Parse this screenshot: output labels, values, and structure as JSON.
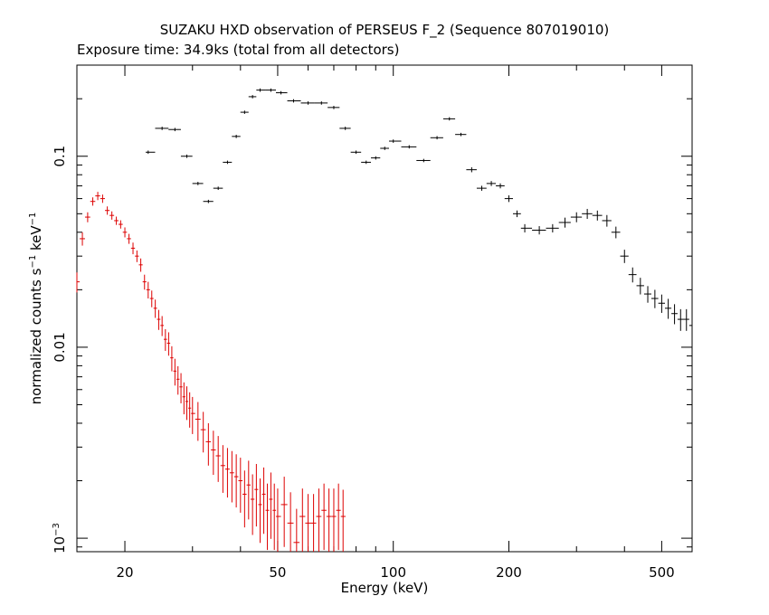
{
  "chart_data": {
    "type": "scatter",
    "title": "SUZAKU HXD observation of PERSEUS F_2 (Sequence 807019010)",
    "subtitle": "Exposure time: 34.9ks (total from all detectors)",
    "xlabel": "Energy (keV)",
    "ylabel": "normalized counts s⁻¹ keV⁻¹",
    "ylabel_parts": {
      "a": "normalized counts s",
      "sup1": "−1",
      "b": " keV",
      "sup2": "−1"
    },
    "x_scale": "log",
    "y_scale": "log",
    "xlim": [
      15,
      600
    ],
    "ylim": [
      0.00085,
      0.3
    ],
    "x_ticks": [
      {
        "value": 20,
        "label": "20"
      },
      {
        "value": 50,
        "label": "50"
      },
      {
        "value": 100,
        "label": "100"
      },
      {
        "value": 200,
        "label": "200"
      },
      {
        "value": 500,
        "label": "500"
      }
    ],
    "y_ticks": [
      {
        "value": 0.1,
        "label": "0.1"
      },
      {
        "value": 0.01,
        "label": "0.01"
      },
      {
        "value": 0.001,
        "label": "10",
        "exp": "−3"
      }
    ],
    "grid": false,
    "series": [
      {
        "color": "#dd0000",
        "x": [
          15.0,
          15.5,
          16.0,
          16.5,
          17.0,
          17.5,
          18.0,
          18.5,
          19.0,
          19.5,
          20.0,
          20.5,
          21.0,
          21.5,
          22.0,
          22.5,
          23.0,
          23.5,
          24.0,
          24.5,
          25.0,
          25.5,
          26.0,
          26.5,
          27.0,
          27.5,
          28.0,
          28.5,
          29.0,
          29.5,
          30.0,
          31.0,
          32.0,
          33.0,
          34.0,
          35.0,
          36.0,
          37.0,
          38.0,
          39.0,
          40.0,
          41.0,
          42.0,
          43.0,
          44.0,
          45.0,
          46.0,
          47.0,
          48.0,
          49.0,
          50.0,
          52.0,
          54.0,
          56.0,
          58.0,
          60.0,
          62.0,
          64.0,
          66.0,
          68.0,
          70.0,
          72.0,
          74.0
        ],
        "y": [
          0.022,
          0.037,
          0.048,
          0.058,
          0.062,
          0.06,
          0.052,
          0.049,
          0.046,
          0.044,
          0.04,
          0.037,
          0.033,
          0.03,
          0.027,
          0.022,
          0.02,
          0.018,
          0.016,
          0.014,
          0.013,
          0.011,
          0.0105,
          0.0088,
          0.0075,
          0.0068,
          0.0062,
          0.0055,
          0.0052,
          0.0048,
          0.0045,
          0.0042,
          0.0037,
          0.0032,
          0.0029,
          0.0027,
          0.0024,
          0.0023,
          0.0022,
          0.0021,
          0.002,
          0.0017,
          0.0019,
          0.0016,
          0.0018,
          0.0015,
          0.0017,
          0.0014,
          0.0016,
          0.0014,
          0.0013,
          0.0015,
          0.0012,
          0.00095,
          0.0013,
          0.0012,
          0.0012,
          0.0013,
          0.0014,
          0.0013,
          0.0013,
          0.0014,
          0.0013
        ],
        "yerr_frac": [
          0.12,
          0.08,
          0.06,
          0.05,
          0.05,
          0.05,
          0.05,
          0.05,
          0.05,
          0.05,
          0.06,
          0.06,
          0.07,
          0.07,
          0.08,
          0.09,
          0.1,
          0.1,
          0.11,
          0.12,
          0.12,
          0.13,
          0.14,
          0.15,
          0.16,
          0.17,
          0.18,
          0.19,
          0.2,
          0.21,
          0.22,
          0.23,
          0.24,
          0.25,
          0.26,
          0.27,
          0.28,
          0.29,
          0.3,
          0.31,
          0.32,
          0.33,
          0.34,
          0.35,
          0.36,
          0.37,
          0.38,
          0.38,
          0.38,
          0.38,
          0.4,
          0.4,
          0.45,
          0.5,
          0.4,
          0.42,
          0.42,
          0.4,
          0.38,
          0.4,
          0.4,
          0.38,
          0.38
        ]
      },
      {
        "color": "#000000",
        "x": [
          23.0,
          25.0,
          27.0,
          29.0,
          31.0,
          33.0,
          35.0,
          37.0,
          39.0,
          41.0,
          43.0,
          45.0,
          48.0,
          51.0,
          55.0,
          60.0,
          65.0,
          70.0,
          75.0,
          80.0,
          85.0,
          90.0,
          95.0,
          100.0,
          110.0,
          120.0,
          130.0,
          140.0,
          150.0,
          160.0,
          170.0,
          180.0,
          190.0,
          200.0,
          210.0,
          220.0,
          240.0,
          260.0,
          280.0,
          300.0,
          320.0,
          340.0,
          360.0,
          380.0,
          400.0,
          420.0,
          440.0,
          460.0,
          480.0,
          500.0,
          520.0,
          540.0,
          560.0,
          580.0,
          600.0
        ],
        "y": [
          0.105,
          0.14,
          0.138,
          0.1,
          0.072,
          0.058,
          0.068,
          0.093,
          0.127,
          0.17,
          0.205,
          0.222,
          0.222,
          0.215,
          0.195,
          0.19,
          0.19,
          0.18,
          0.14,
          0.105,
          0.093,
          0.098,
          0.11,
          0.12,
          0.112,
          0.095,
          0.125,
          0.157,
          0.13,
          0.085,
          0.068,
          0.072,
          0.07,
          0.06,
          0.05,
          0.042,
          0.041,
          0.042,
          0.045,
          0.048,
          0.05,
          0.049,
          0.046,
          0.04,
          0.03,
          0.024,
          0.021,
          0.019,
          0.018,
          0.017,
          0.016,
          0.015,
          0.014,
          0.014,
          0.013
        ],
        "yerr_frac": [
          0.02,
          0.02,
          0.02,
          0.02,
          0.02,
          0.02,
          0.02,
          0.02,
          0.02,
          0.02,
          0.02,
          0.02,
          0.02,
          0.02,
          0.02,
          0.02,
          0.02,
          0.02,
          0.02,
          0.02,
          0.02,
          0.02,
          0.02,
          0.02,
          0.02,
          0.02,
          0.02,
          0.02,
          0.02,
          0.03,
          0.03,
          0.03,
          0.03,
          0.04,
          0.04,
          0.05,
          0.05,
          0.05,
          0.06,
          0.06,
          0.06,
          0.06,
          0.07,
          0.07,
          0.08,
          0.09,
          0.1,
          0.1,
          0.11,
          0.11,
          0.12,
          0.12,
          0.13,
          0.13,
          0.13
        ]
      }
    ]
  }
}
